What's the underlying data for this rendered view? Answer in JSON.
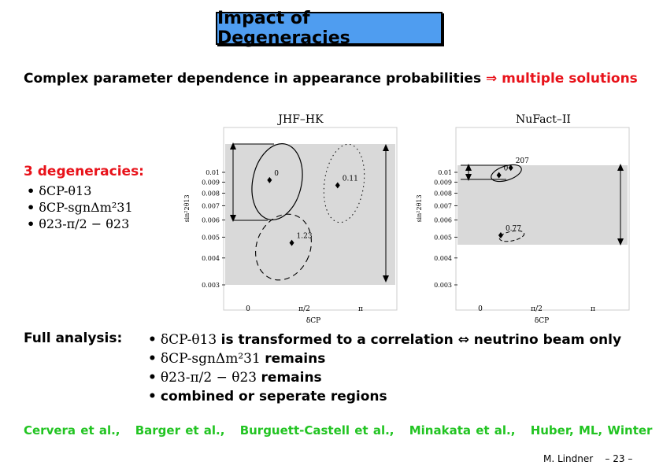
{
  "title": "Impact of Degeneracies",
  "headline": {
    "main": "Complex parameter dependence in appearance probabilities",
    "arrow": "⇒",
    "highlight": "multiple solutions"
  },
  "degeneracies": {
    "label": "3 degeneracies:",
    "items": [
      "δCP-θ13",
      "δCP-sgnΔm²31",
      "θ23-π/2 − θ23"
    ]
  },
  "full_analysis": {
    "label": "Full analysis:",
    "items": [
      {
        "math": "δCP-θ13",
        "text": "is transformed to a correlation ⇔ neutrino beam only"
      },
      {
        "math": "δCP-sgnΔm²31",
        "text": "remains"
      },
      {
        "math": "θ23-π/2 − θ23",
        "text": "remains"
      },
      {
        "math": "",
        "text": "combined or seperate regions"
      }
    ]
  },
  "references": [
    "Cervera et al.,",
    "Barger et al.,",
    "Burguett-Castell et al.,",
    "Minakata et al.,",
    "Huber, ML, Winter"
  ],
  "footer": {
    "author": "M. Lindner",
    "page": "– 23 –"
  },
  "chart_data": [
    {
      "type": "scatter",
      "title": "JHF–HK",
      "xlabel": "δCP",
      "ylabel": "sin²2θ13",
      "x_ticks": [
        "0",
        "π/2",
        "π"
      ],
      "y_ticks": [
        "0.01",
        "0.009",
        "0.008",
        "0.007",
        "0.006",
        "0.005",
        "0.004",
        "0.003"
      ],
      "y_scale": "log",
      "points": [
        {
          "label": "0",
          "x": 0.6,
          "y": 0.0092
        },
        {
          "label": "0.11",
          "x": 2.5,
          "y": 0.0087
        },
        {
          "label": "1.23",
          "x": 1.22,
          "y": 0.0047
        }
      ]
    },
    {
      "type": "scatter",
      "title": "NuFact–II",
      "xlabel": "δCP",
      "ylabel": "sin²2θ13",
      "x_ticks": [
        "0",
        "π/2",
        "π"
      ],
      "y_ticks": [
        "0.01",
        "0.009",
        "0.008",
        "0.007",
        "0.006",
        "0.005",
        "0.004",
        "0.003"
      ],
      "y_scale": "log",
      "points": [
        {
          "label": "0",
          "x": 0.52,
          "y": 0.0097
        },
        {
          "label": "207",
          "x": 0.85,
          "y": 0.0105
        },
        {
          "label": "0.77",
          "x": 0.57,
          "y": 0.0051
        }
      ]
    }
  ]
}
